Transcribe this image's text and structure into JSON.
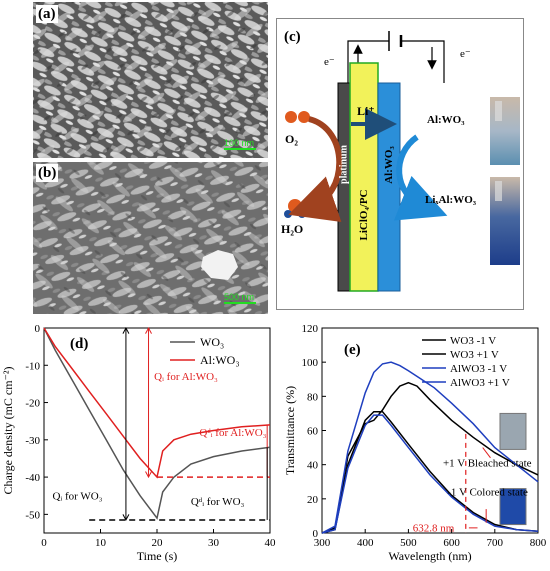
{
  "panel_a": {
    "label": "(a)",
    "scalebar": "100 nm"
  },
  "panel_b": {
    "label": "(b)",
    "scalebar": "500 nm"
  },
  "panel_c": {
    "label": "(c)",
    "electron_left": "e⁻",
    "electron_right": "e⁻",
    "li_ion": "Li⁺",
    "o2": "O₂",
    "h2o": "H₂O",
    "platinum": "platinum",
    "electrolyte": "LiClO₄/PC",
    "film": "Al:WO₃",
    "state_bleached": "Al:WO₃",
    "state_colored": "LiₓAl:WO₃"
  },
  "chart_data": [
    {
      "type": "line",
      "panel": "(d)",
      "xlabel": "Time (s)",
      "ylabel": "Charge density (mC cm⁻²)",
      "xlim": [
        0,
        40
      ],
      "ylim": [
        -55,
        0
      ],
      "xticks": [
        "0",
        "10",
        "20",
        "30",
        "40"
      ],
      "yticks": [
        "0",
        "-10",
        "-20",
        "-30",
        "-40",
        "-50"
      ],
      "legend": "top-right",
      "series": [
        {
          "name": "WO₃",
          "color": "#555555",
          "x": [
            0,
            2,
            5,
            8,
            11,
            14,
            17,
            20,
            21,
            23,
            26,
            30,
            35,
            40
          ],
          "y": [
            0,
            -6,
            -14,
            -22,
            -30,
            -38,
            -45,
            -51,
            -44,
            -40,
            -36.5,
            -34.5,
            -33,
            -32
          ]
        },
        {
          "name": "Al:WO₃",
          "color": "#e02020",
          "x": [
            0,
            2,
            5,
            8,
            11,
            14,
            17,
            20,
            21,
            23,
            26,
            30,
            35,
            40
          ],
          "y": [
            0,
            -5,
            -11,
            -17,
            -23,
            -29,
            -35,
            -40,
            -33,
            -30,
            -28.5,
            -27.5,
            -26.5,
            -26
          ]
        }
      ],
      "annotations": [
        {
          "text": "Qᵢ for Al:WO₃",
          "color": "#e02020"
        },
        {
          "text": "Qᵈᵢ for Al:WO₃",
          "color": "#e02020"
        },
        {
          "text": "Qᵢ for WO₃",
          "color": "#000000"
        },
        {
          "text": "Qᵈᵢ for WO₃",
          "color": "#000000"
        }
      ]
    },
    {
      "type": "line",
      "panel": "(e)",
      "xlabel": "Wavelength (nm)",
      "ylabel": "Transmittance (%)",
      "xlim": [
        300,
        800
      ],
      "ylim": [
        0,
        120
      ],
      "xticks": [
        "300",
        "400",
        "500",
        "600",
        "700",
        "800"
      ],
      "yticks": [
        "0",
        "20",
        "40",
        "60",
        "80",
        "100",
        "120"
      ],
      "legend": "top-right",
      "series": [
        {
          "name": "WO3 -1 V",
          "color": "#000000",
          "x": [
            300,
            330,
            360,
            400,
            420,
            440,
            460,
            500,
            550,
            600,
            650,
            700,
            750,
            800
          ],
          "y": [
            0,
            2,
            40,
            66,
            71,
            71,
            65,
            52,
            36,
            22,
            12,
            5,
            2,
            1
          ]
        },
        {
          "name": "WO3 +1 V",
          "color": "#000000",
          "x": [
            300,
            330,
            360,
            400,
            420,
            440,
            460,
            480,
            500,
            520,
            550,
            600,
            650,
            700,
            750,
            800
          ],
          "y": [
            0,
            3,
            45,
            64,
            66,
            72,
            80,
            86,
            88,
            86,
            78,
            66,
            56,
            47,
            40,
            34
          ]
        },
        {
          "name": "AlWO3 -1 V",
          "color": "#1f3fbf",
          "x": [
            300,
            330,
            360,
            400,
            420,
            440,
            460,
            500,
            550,
            600,
            650,
            700,
            750,
            800
          ],
          "y": [
            0,
            2,
            38,
            63,
            69,
            69,
            63,
            50,
            34,
            21,
            11,
            4,
            2,
            1
          ]
        },
        {
          "name": "AlWO3 +1 V",
          "color": "#1f3fbf",
          "x": [
            300,
            330,
            360,
            400,
            420,
            440,
            460,
            480,
            500,
            530,
            560,
            600,
            650,
            700,
            750,
            800
          ],
          "y": [
            0,
            4,
            48,
            82,
            94,
            99,
            100,
            98,
            95,
            90,
            85,
            76,
            64,
            50,
            40,
            30
          ]
        }
      ],
      "annotations": [
        {
          "text": "+1 V Bleached state",
          "color": "#000000"
        },
        {
          "text": "-1 V Colored state",
          "color": "#000000"
        },
        {
          "text": "632.8 nm",
          "color": "#e02020"
        }
      ]
    }
  ]
}
